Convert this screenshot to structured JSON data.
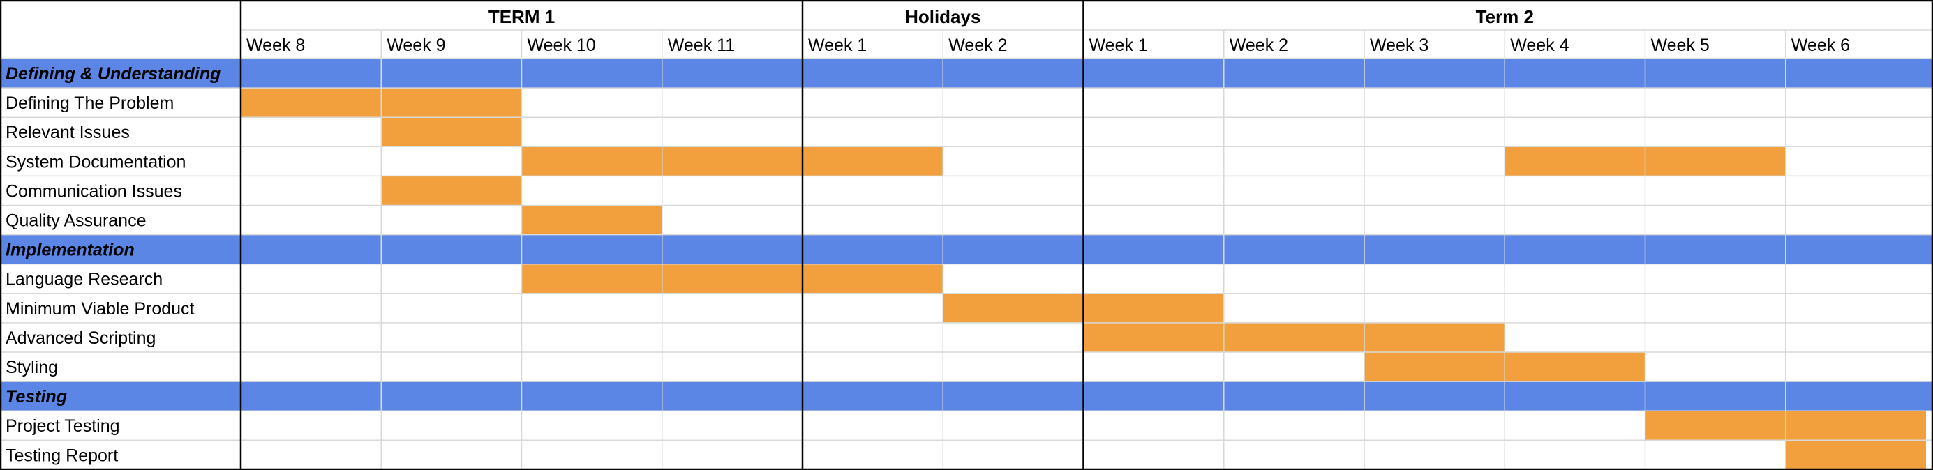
{
  "chart_data": {
    "type": "table",
    "colors": {
      "section_band": "#5b86e5",
      "task_bar": "#f2a03d",
      "gridline": "#d9d9d9",
      "divider": "#000000",
      "background": "#ffffff"
    },
    "groups": [
      {
        "label": "TERM 1",
        "span": 4
      },
      {
        "label": "Holidays",
        "span": 2
      },
      {
        "label": "Term 2",
        "span": 6
      }
    ],
    "weeks": [
      "Week 8",
      "Week 9",
      "Week 10",
      "Week 11",
      "Week 1",
      "Week 2",
      "Week 1",
      "Week 2",
      "Week 3",
      "Week 4",
      "Week 5",
      "Week 6"
    ],
    "rows": [
      {
        "label": "Defining & Understanding",
        "section": true,
        "filled": []
      },
      {
        "label": "Defining The Problem",
        "section": false,
        "filled": [
          0,
          1
        ]
      },
      {
        "label": "Relevant Issues",
        "section": false,
        "filled": [
          1
        ]
      },
      {
        "label": "System Documentation",
        "section": false,
        "filled": [
          2,
          3,
          4,
          9,
          10
        ]
      },
      {
        "label": "Communication Issues",
        "section": false,
        "filled": [
          1
        ]
      },
      {
        "label": "Quality Assurance",
        "section": false,
        "filled": [
          2
        ]
      },
      {
        "label": "Implementation",
        "section": true,
        "filled": []
      },
      {
        "label": "Language Research",
        "section": false,
        "filled": [
          2,
          3,
          4
        ]
      },
      {
        "label": "Minimum Viable Product",
        "section": false,
        "filled": [
          5,
          6
        ]
      },
      {
        "label": "Advanced Scripting",
        "section": false,
        "filled": [
          6,
          7,
          8
        ]
      },
      {
        "label": "Styling",
        "section": false,
        "filled": [
          8,
          9
        ]
      },
      {
        "label": "Testing",
        "section": true,
        "filled": []
      },
      {
        "label": "Project Testing",
        "section": false,
        "filled": [
          10,
          11
        ]
      },
      {
        "label": "Testing Report",
        "section": false,
        "filled": [
          11
        ]
      }
    ]
  }
}
